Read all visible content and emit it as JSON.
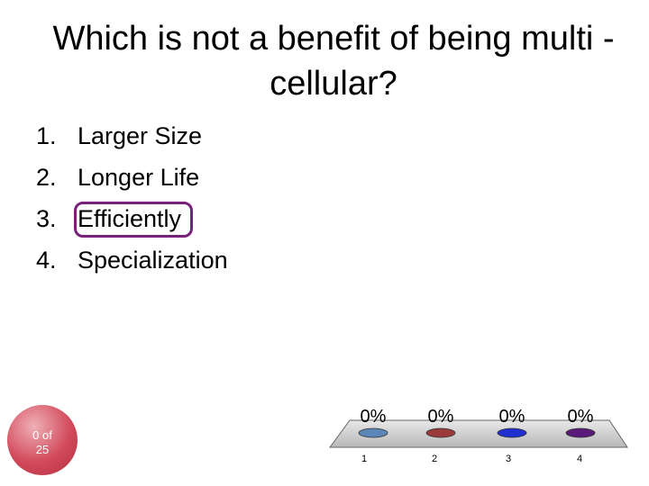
{
  "slide": {
    "title": "Which is not a benefit of being multi -cellular?",
    "options": [
      {
        "number": "1.",
        "text": "Larger Size"
      },
      {
        "number": "2.",
        "text": "Longer Life"
      },
      {
        "number": "3.",
        "text": "Efficiently"
      },
      {
        "number": "4.",
        "text": "Specialization"
      }
    ],
    "highlighted_option": "3.",
    "response_counter": {
      "line1": "0 of",
      "line2": "25"
    }
  },
  "chart_data": {
    "type": "bar",
    "categories": [
      "1",
      "2",
      "3",
      "4"
    ],
    "values": [
      0,
      0,
      0,
      0
    ],
    "value_labels": [
      "0%",
      "0%",
      "0%",
      "0%"
    ],
    "colors": [
      "#5b86b7",
      "#9b3a3a",
      "#1f2fd0",
      "#5a1a7a"
    ]
  }
}
